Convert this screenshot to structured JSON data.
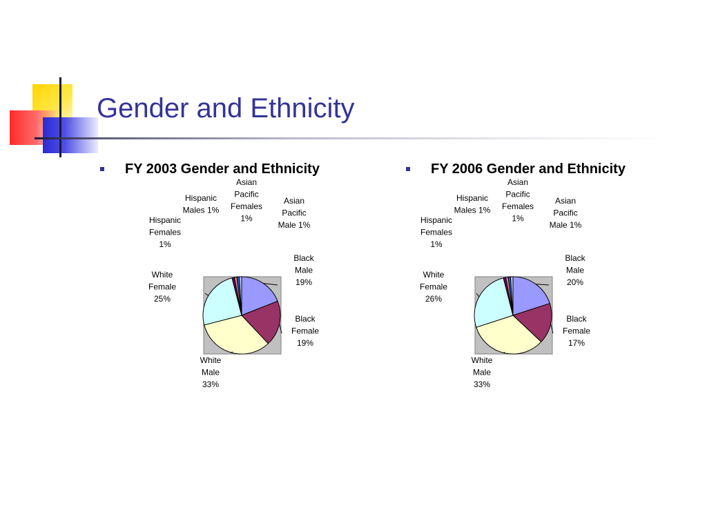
{
  "page": {
    "title": "Gender and Ethnicity"
  },
  "colors": {
    "title": "#333399",
    "bullet": "#333399",
    "plot_area": "#c0c0c0"
  },
  "chart_data": [
    {
      "type": "pie",
      "heading": "FY 2003 Gender and Ethnicity",
      "title": "",
      "categories": [
        "Black Male",
        "Black Female",
        "White Male",
        "White Female",
        "Hispanic Females",
        "Hispanic Males",
        "Asian Pacific Females",
        "Asian Pacific Male"
      ],
      "values": [
        19,
        19,
        33,
        25,
        1,
        1,
        1,
        1
      ],
      "colors": [
        "#9999ff",
        "#993366",
        "#ffffcc",
        "#ccffff",
        "#660066",
        "#ff8080",
        "#0066cc",
        "#ccccff"
      ],
      "labels": [
        [
          "Black",
          "Male",
          "19%"
        ],
        [
          "Black",
          "Female",
          "19%"
        ],
        [
          "White",
          "Male",
          "33%"
        ],
        [
          "White",
          "Female",
          "25%"
        ],
        [
          "Hispanic",
          "Females",
          "1%"
        ],
        [
          "Hispanic",
          "Males 1%"
        ],
        [
          "Asian",
          "Pacific",
          "Females",
          "1%"
        ],
        [
          "Asian",
          "Pacific",
          "Male 1%"
        ]
      ],
      "legend": "none"
    },
    {
      "type": "pie",
      "heading": "FY 2006 Gender and Ethnicity",
      "title": "",
      "categories": [
        "Black Male",
        "Black Female",
        "White Male",
        "White Female",
        "Hispanic Females",
        "Hispanic Males",
        "Asian Pacific Females",
        "Asian Pacific Male"
      ],
      "values": [
        20,
        17,
        33,
        26,
        1,
        1,
        1,
        1
      ],
      "colors": [
        "#9999ff",
        "#993366",
        "#ffffcc",
        "#ccffff",
        "#660066",
        "#ff8080",
        "#0066cc",
        "#ccccff"
      ],
      "labels": [
        [
          "Black",
          "Male",
          "20%"
        ],
        [
          "Black",
          "Female",
          "17%"
        ],
        [
          "White",
          "Male",
          "33%"
        ],
        [
          "White",
          "Female",
          "26%"
        ],
        [
          "Hispanic",
          "Females",
          "1%"
        ],
        [
          "Hispanic",
          "Males 1%"
        ],
        [
          "Asian",
          "Pacific",
          "Females",
          "1%"
        ],
        [
          "Asian",
          "Pacific",
          "Male 1%"
        ]
      ],
      "legend": "none"
    }
  ]
}
